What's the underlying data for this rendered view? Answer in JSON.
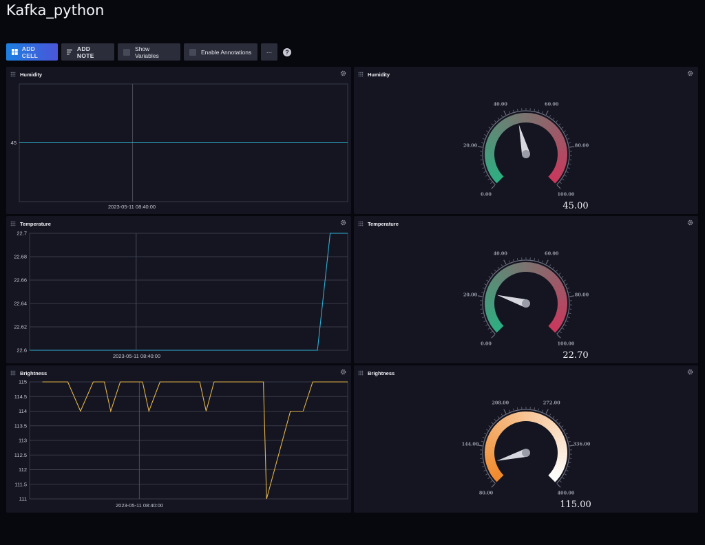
{
  "page": {
    "title": "Kafka_python"
  },
  "toolbar": {
    "add_cell_label": "ADD CELL",
    "add_note_label": "ADD NOTE",
    "show_variables_label": "Show Variables",
    "enable_annotations_label": "Enable Annotations",
    "more_label": "···",
    "help_label": "?"
  },
  "colors": {
    "background": "#07080e",
    "cell": "#141520",
    "humidity_line": "#31b0d5",
    "brightness_line": "#e5b54a",
    "gauge_green": "#2fae82",
    "gauge_red": "#c9385d",
    "gauge_orange": "#f08a2c",
    "gauge_white": "#ffffff"
  },
  "cells": {
    "humidity_graph": {
      "title": "Humidity",
      "time_label": "2023-05-11 08:40:00"
    },
    "humidity_gauge": {
      "title": "Humidity",
      "value_text": "45.00",
      "labels": [
        "0.00",
        "20.00",
        "40.00",
        "60.00",
        "80.00",
        "100.00"
      ]
    },
    "temperature_graph": {
      "title": "Temperature",
      "time_label": "2023-05-11 08:40:00"
    },
    "temperature_gauge": {
      "title": "Temperature",
      "value_text": "22.70",
      "labels": [
        "0.00",
        "20.00",
        "40.00",
        "60.00",
        "80.00",
        "100.00"
      ]
    },
    "brightness_graph": {
      "title": "Brightness",
      "time_label": "2023-05-11 08:40:00"
    },
    "brightness_gauge": {
      "title": "Brightness",
      "value_text": "115.00",
      "labels": [
        "80.00",
        "144.00",
        "208.00",
        "272.00",
        "336.00",
        "400.00"
      ]
    }
  },
  "chart_data": [
    {
      "type": "line",
      "name": "humidity_graph",
      "y_ticks": [
        "45"
      ],
      "ylim": [
        44,
        46
      ],
      "x": [
        0,
        1
      ],
      "series": [
        {
          "values": [
            45,
            45
          ]
        }
      ],
      "x_marker": 0.345,
      "xlabel": "2023-05-11 08:40:00"
    },
    {
      "type": "line",
      "name": "temperature_graph",
      "y_ticks": [
        "22.7",
        "22.68",
        "22.66",
        "22.64",
        "22.62",
        "22.6"
      ],
      "ylim": [
        22.6,
        22.7
      ],
      "x": [
        0,
        0.905,
        0.945,
        1
      ],
      "series": [
        {
          "values": [
            22.6,
            22.6,
            22.7,
            22.7
          ]
        }
      ],
      "x_marker": 0.335,
      "xlabel": "2023-05-11 08:40:00"
    },
    {
      "type": "line",
      "name": "brightness_graph",
      "y_ticks": [
        "115",
        "114.5",
        "114",
        "113.5",
        "113",
        "112.5",
        "112",
        "111.5",
        "111"
      ],
      "ylim": [
        111,
        115
      ],
      "x": [
        0.04,
        0.12,
        0.16,
        0.2,
        0.235,
        0.255,
        0.285,
        0.355,
        0.375,
        0.41,
        0.535,
        0.555,
        0.58,
        0.735,
        0.745,
        0.82,
        0.86,
        0.89,
        0.915,
        1.0
      ],
      "series": [
        {
          "values": [
            115,
            115,
            114,
            115,
            115,
            114,
            115,
            115,
            114,
            115,
            115,
            114,
            115,
            115,
            111,
            114,
            114,
            115,
            115,
            115
          ]
        }
      ],
      "x_marker": 0.345,
      "xlabel": "2023-05-11 08:40:00"
    },
    {
      "type": "gauge",
      "name": "humidity_gauge",
      "min": 0,
      "max": 100,
      "value": 45,
      "value_label": "45.00"
    },
    {
      "type": "gauge",
      "name": "temperature_gauge",
      "min": 0,
      "max": 100,
      "value": 22.7,
      "value_label": "22.70"
    },
    {
      "type": "gauge",
      "name": "brightness_gauge",
      "min": 80,
      "max": 400,
      "value": 115,
      "value_label": "115.00"
    }
  ]
}
